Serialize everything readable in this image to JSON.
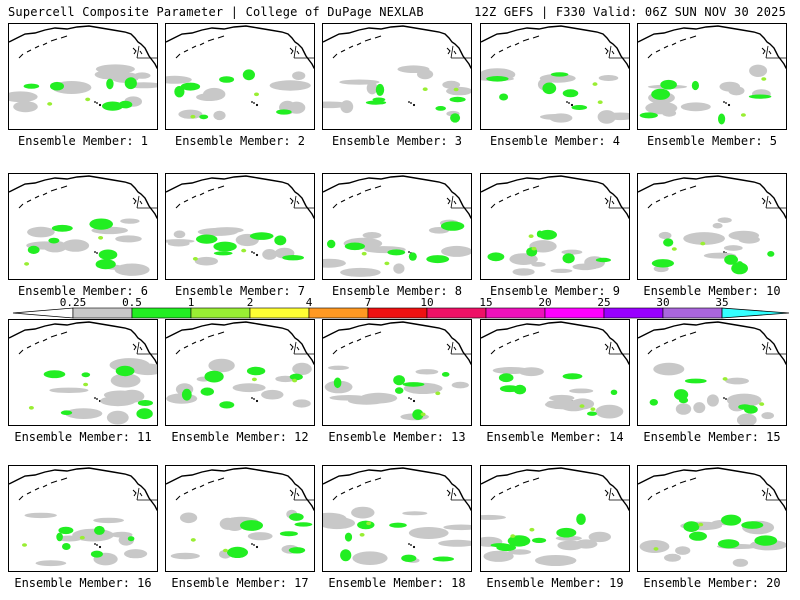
{
  "header": {
    "left": "Supercell Composite Parameter | College of DuPage NEXLAB",
    "right": "12Z GEFS | F330 Valid: 06Z SUN NOV 30 2025"
  },
  "members": [
    "Ensemble Member: 1",
    "Ensemble Member: 2",
    "Ensemble Member: 3",
    "Ensemble Member: 4",
    "Ensemble Member: 5",
    "Ensemble Member: 6",
    "Ensemble Member: 7",
    "Ensemble Member: 8",
    "Ensemble Member: 9",
    "Ensemble Member: 10",
    "Ensemble Member: 11",
    "Ensemble Member: 12",
    "Ensemble Member: 13",
    "Ensemble Member: 14",
    "Ensemble Member: 15",
    "Ensemble Member: 16",
    "Ensemble Member: 17",
    "Ensemble Member: 18",
    "Ensemble Member: 19",
    "Ensemble Member: 20"
  ],
  "colorbar": {
    "labels": [
      "0.25",
      "0.5",
      "1",
      "2",
      "4",
      "7",
      "10",
      "15",
      "20",
      "25",
      "30",
      "35"
    ],
    "colors": [
      "#c8c8c8",
      "#22ee22",
      "#99ee33",
      "#ffff33",
      "#ff9922",
      "#ee1111",
      "#ee1166",
      "#ee11bb",
      "#ff00ff",
      "#9900ff",
      "#aa66dd",
      "#33ffff"
    ]
  }
}
